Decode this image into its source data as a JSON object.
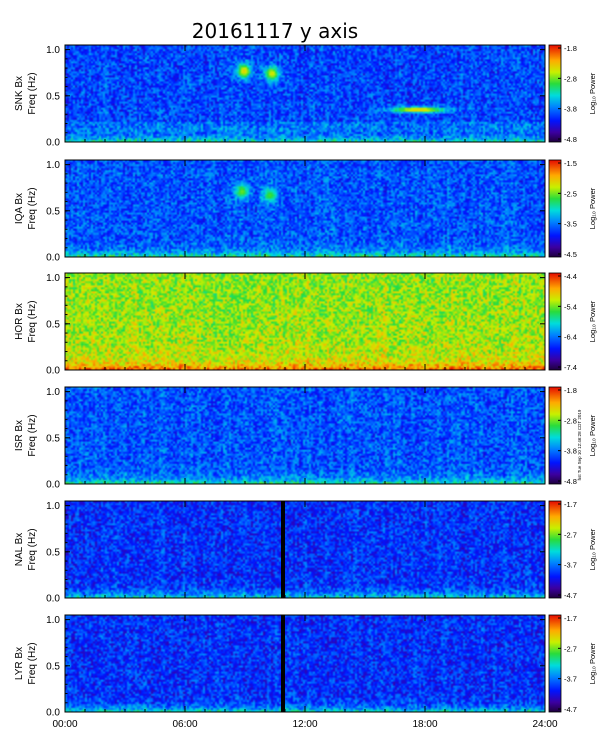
{
  "figure": {
    "title": "20161117 y axis",
    "stamp": "hst Tue Sep 10 12:46:28 CDT 2019"
  },
  "chart_data": {
    "type": "heatmap",
    "title": "20161117 y axis",
    "x_ticks": [
      "00:00",
      "06:00",
      "12:00",
      "18:00",
      "24:00"
    ],
    "x_range_hours": [
      0,
      24
    ],
    "y_ticks": [
      "0.0",
      "0.5",
      "1.0"
    ],
    "y_range_hz": [
      0,
      1.05
    ],
    "colorbar_label": "Log₁₀ Power",
    "panels": [
      {
        "station": "SNK Bx",
        "ylabel": "Freq (Hz)",
        "cbar_ticks": [
          "-1.8",
          "-2.8",
          "-3.8",
          "-4.8"
        ],
        "clim": [
          -4.8,
          -1.8
        ],
        "background_level": 0.28,
        "gap_hours": null,
        "features": [
          {
            "t": 8.9,
            "f": 0.78,
            "level": 0.78
          },
          {
            "t": 10.3,
            "f": 0.75,
            "level": 0.75
          },
          {
            "t": 17.6,
            "f": 0.36,
            "level": 0.82
          }
        ]
      },
      {
        "station": "IQA Bx",
        "ylabel": "Freq (Hz)",
        "cbar_ticks": [
          "-1.5",
          "-2.5",
          "-3.5",
          "-4.5"
        ],
        "clim": [
          -4.5,
          -1.5
        ],
        "background_level": 0.3,
        "gap_hours": null,
        "features": [
          {
            "t": 8.8,
            "f": 0.72,
            "level": 0.65
          },
          {
            "t": 10.2,
            "f": 0.68,
            "level": 0.62
          }
        ]
      },
      {
        "station": "HOR Bx",
        "ylabel": "Freq (Hz)",
        "cbar_ticks": [
          "-4.4",
          "-5.4",
          "-6.4",
          "-7.4"
        ],
        "clim": [
          -7.4,
          -4.4
        ],
        "background_level": 0.68,
        "gap_hours": null,
        "features": []
      },
      {
        "station": "ISR Bx",
        "ylabel": "Freq (Hz)",
        "cbar_ticks": [
          "-1.8",
          "-2.8",
          "-3.8",
          "-4.8"
        ],
        "clim": [
          -4.8,
          -1.8
        ],
        "background_level": 0.3,
        "gap_hours": null,
        "features": []
      },
      {
        "station": "NAL Bx",
        "ylabel": "Freq (Hz)",
        "cbar_ticks": [
          "-1.7",
          "-2.7",
          "-3.7",
          "-4.7"
        ],
        "clim": [
          -4.7,
          -1.7
        ],
        "background_level": 0.25,
        "gap_hours": [
          10.8,
          11.0
        ],
        "features": []
      },
      {
        "station": "LYR Bx",
        "ylabel": "Freq (Hz)",
        "cbar_ticks": [
          "-1.7",
          "-2.7",
          "-3.7",
          "-4.7"
        ],
        "clim": [
          -4.7,
          -1.7
        ],
        "background_level": 0.25,
        "gap_hours": [
          10.8,
          11.0
        ],
        "features": []
      }
    ]
  }
}
